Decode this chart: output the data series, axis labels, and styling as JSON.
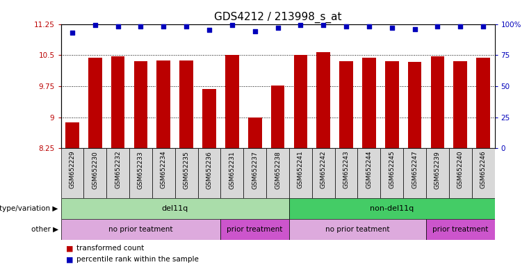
{
  "title": "GDS4212 / 213998_s_at",
  "samples": [
    "GSM652229",
    "GSM652230",
    "GSM652232",
    "GSM652233",
    "GSM652234",
    "GSM652235",
    "GSM652236",
    "GSM652231",
    "GSM652237",
    "GSM652238",
    "GSM652241",
    "GSM652242",
    "GSM652243",
    "GSM652244",
    "GSM652245",
    "GSM652247",
    "GSM652239",
    "GSM652240",
    "GSM652246"
  ],
  "bar_values": [
    8.88,
    10.43,
    10.47,
    10.35,
    10.37,
    10.37,
    9.68,
    10.5,
    9.0,
    9.77,
    10.5,
    10.57,
    10.36,
    10.43,
    10.35,
    10.33,
    10.47,
    10.36,
    10.43
  ],
  "dot_values": [
    93,
    99,
    98,
    98,
    98,
    98,
    95,
    99,
    94,
    97,
    99,
    99,
    98,
    98,
    97,
    96,
    98,
    98,
    98
  ],
  "ylim_left": [
    8.25,
    11.25
  ],
  "yticks_left": [
    8.25,
    9.0,
    9.75,
    10.5,
    11.25
  ],
  "ytick_labels_left": [
    "8.25",
    "9",
    "9.75",
    "10.5",
    "11.25"
  ],
  "ylim_right": [
    0,
    100
  ],
  "yticks_right": [
    0,
    25,
    50,
    75,
    100
  ],
  "ytick_labels_right": [
    "0",
    "25",
    "50",
    "75",
    "100%"
  ],
  "bar_color": "#bb0000",
  "dot_color": "#0000bb",
  "background_color": "#ffffff",
  "plot_bg_color": "#ffffff",
  "genotype_groups": [
    {
      "text": "del11q",
      "start": 0,
      "end": 10,
      "color": "#aaddaa"
    },
    {
      "text": "non-del11q",
      "start": 10,
      "end": 19,
      "color": "#44cc66"
    }
  ],
  "other_groups": [
    {
      "text": "no prior teatment",
      "start": 0,
      "end": 7,
      "color": "#ddaadd"
    },
    {
      "text": "prior treatment",
      "start": 7,
      "end": 10,
      "color": "#cc55cc"
    },
    {
      "text": "no prior teatment",
      "start": 10,
      "end": 16,
      "color": "#ddaadd"
    },
    {
      "text": "prior treatment",
      "start": 16,
      "end": 19,
      "color": "#cc55cc"
    }
  ],
  "legend_items": [
    {
      "label": "transformed count",
      "color": "#bb0000"
    },
    {
      "label": "percentile rank within the sample",
      "color": "#0000bb"
    }
  ],
  "row_labels": [
    "genotype/variation",
    "other"
  ],
  "grid_lines": [
    9.0,
    9.75,
    10.5
  ],
  "title_fontsize": 11,
  "tick_fontsize": 7.5,
  "sample_fontsize": 6.5
}
